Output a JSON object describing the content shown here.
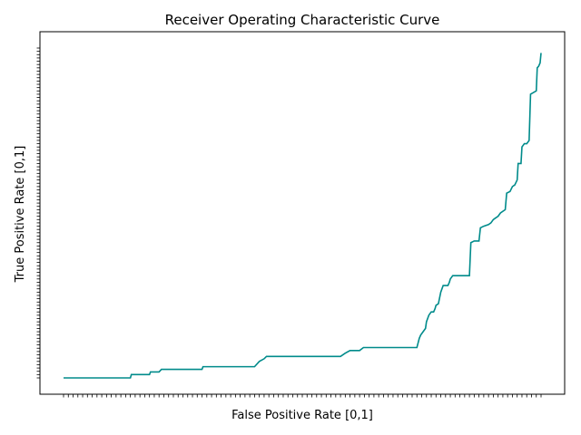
{
  "chart_data": {
    "type": "line",
    "title": "Receiver Operating Characteristic Curve",
    "xlabel": "False Positive Rate [0,1]",
    "ylabel": "True Positive Rate [0,1]",
    "xlim": [
      0,
      1
    ],
    "ylim": [
      0,
      1
    ],
    "grid": false,
    "tick_labels_shown": false,
    "x_tick_count": 100,
    "y_tick_count": 100,
    "series": [
      {
        "color": "#008b8b",
        "points": [
          [
            0.0,
            0.0
          ],
          [
            0.14,
            0.0
          ],
          [
            0.142,
            0.01
          ],
          [
            0.18,
            0.01
          ],
          [
            0.182,
            0.018
          ],
          [
            0.2,
            0.018
          ],
          [
            0.205,
            0.026
          ],
          [
            0.29,
            0.026
          ],
          [
            0.292,
            0.034
          ],
          [
            0.4,
            0.034
          ],
          [
            0.41,
            0.05
          ],
          [
            0.42,
            0.058
          ],
          [
            0.425,
            0.065
          ],
          [
            0.58,
            0.065
          ],
          [
            0.59,
            0.075
          ],
          [
            0.6,
            0.083
          ],
          [
            0.62,
            0.083
          ],
          [
            0.628,
            0.092
          ],
          [
            0.74,
            0.092
          ],
          [
            0.745,
            0.12
          ],
          [
            0.748,
            0.13
          ],
          [
            0.758,
            0.15
          ],
          [
            0.76,
            0.17
          ],
          [
            0.765,
            0.19
          ],
          [
            0.77,
            0.2
          ],
          [
            0.775,
            0.2
          ],
          [
            0.778,
            0.21
          ],
          [
            0.78,
            0.22
          ],
          [
            0.785,
            0.225
          ],
          [
            0.79,
            0.26
          ],
          [
            0.795,
            0.28
          ],
          [
            0.805,
            0.28
          ],
          [
            0.808,
            0.29
          ],
          [
            0.81,
            0.3
          ],
          [
            0.815,
            0.31
          ],
          [
            0.85,
            0.31
          ],
          [
            0.853,
            0.41
          ],
          [
            0.86,
            0.415
          ],
          [
            0.87,
            0.415
          ],
          [
            0.873,
            0.455
          ],
          [
            0.88,
            0.46
          ],
          [
            0.89,
            0.465
          ],
          [
            0.895,
            0.47
          ],
          [
            0.9,
            0.48
          ],
          [
            0.905,
            0.485
          ],
          [
            0.91,
            0.49
          ],
          [
            0.915,
            0.5
          ],
          [
            0.925,
            0.51
          ],
          [
            0.928,
            0.56
          ],
          [
            0.935,
            0.565
          ],
          [
            0.94,
            0.58
          ],
          [
            0.945,
            0.585
          ],
          [
            0.95,
            0.6
          ],
          [
            0.952,
            0.65
          ],
          [
            0.958,
            0.65
          ],
          [
            0.96,
            0.7
          ],
          [
            0.965,
            0.71
          ],
          [
            0.97,
            0.71
          ],
          [
            0.975,
            0.72
          ],
          [
            0.978,
            0.86
          ],
          [
            0.99,
            0.87
          ],
          [
            0.992,
            0.94
          ],
          [
            0.995,
            0.945
          ],
          [
            0.998,
            0.955
          ],
          [
            1.0,
            0.985
          ]
        ]
      }
    ]
  }
}
